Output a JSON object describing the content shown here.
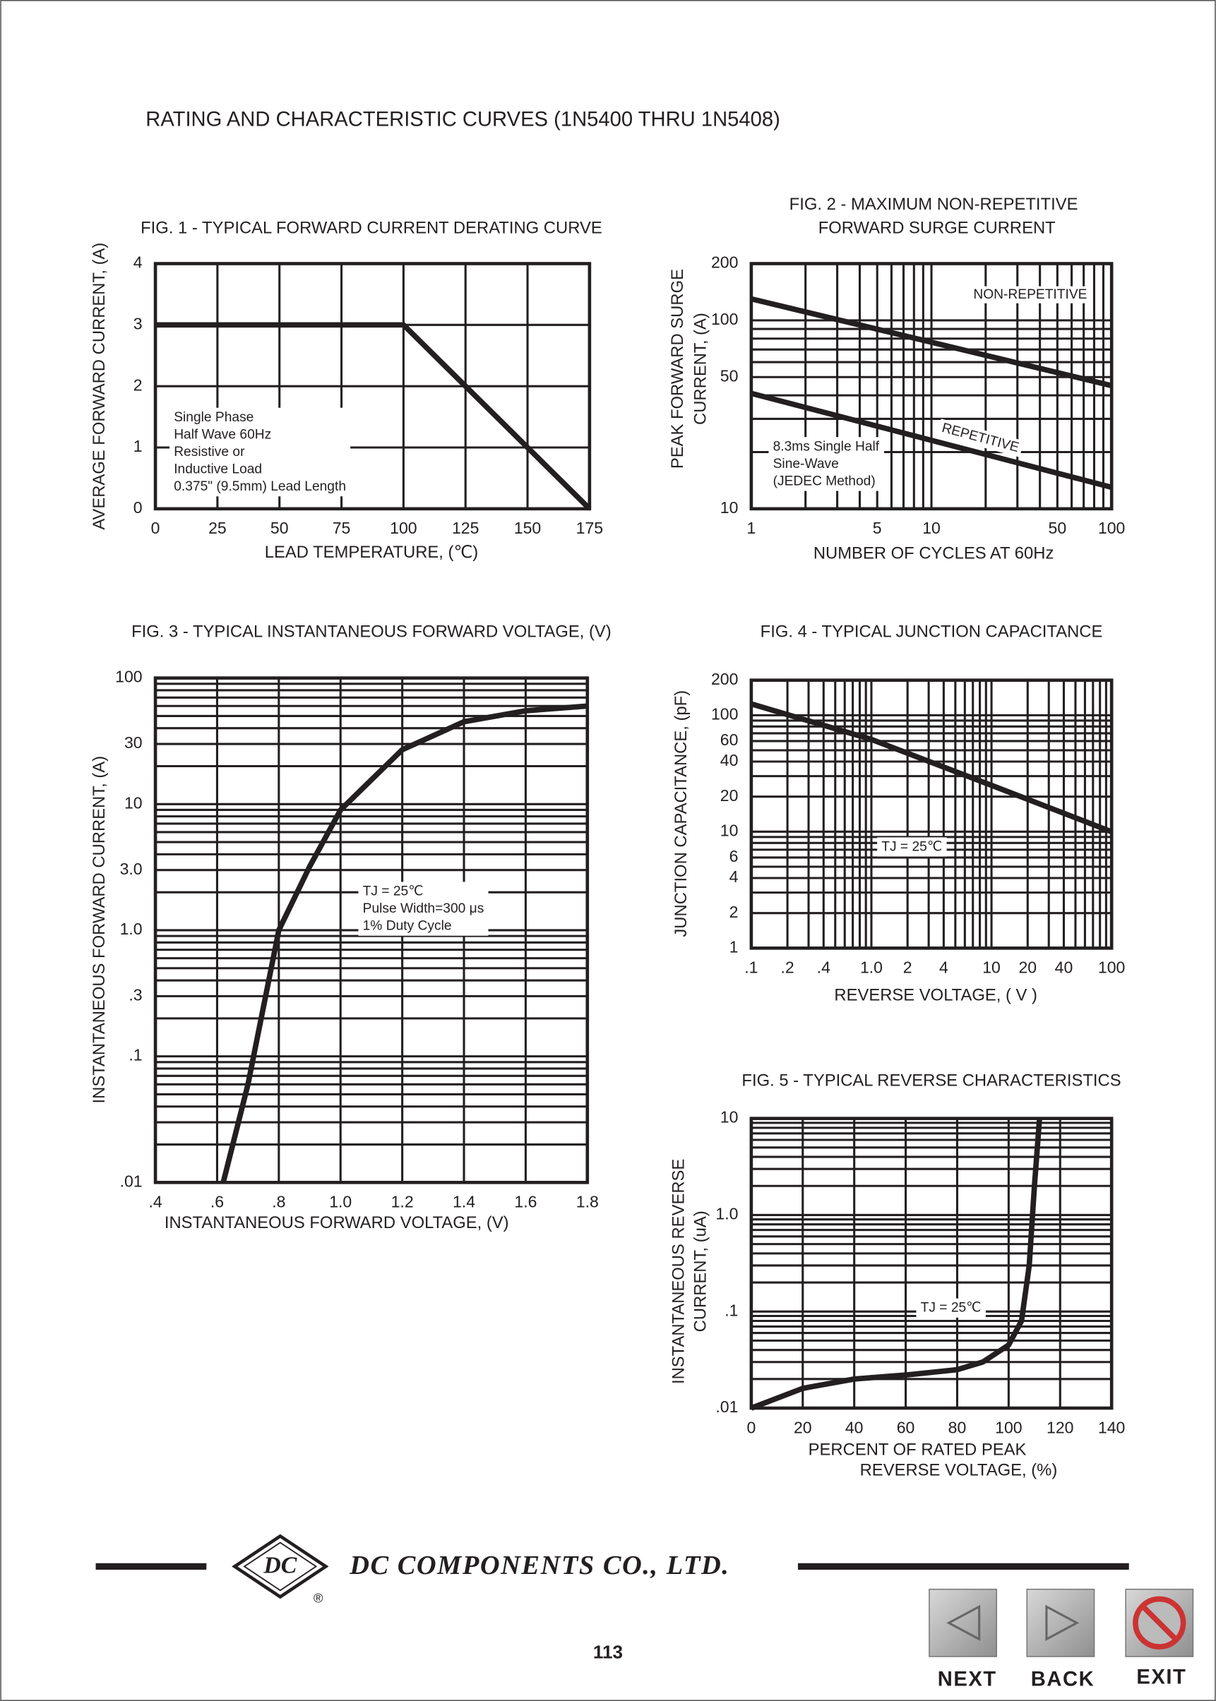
{
  "header": {
    "title": "RATING AND CHARACTERISTIC CURVES (1N5400 THRU 1N5408)"
  },
  "chart_data": [
    {
      "type": "line",
      "title": [
        "FIG. 1 - TYPICAL FORWARD CURRENT DERATING CURVE"
      ],
      "x_label": [
        "LEAD TEMPERATURE, (℃)"
      ],
      "y_label": [
        "AVERAGE FORWARD CURRENT, (A)"
      ],
      "xscale": "linear",
      "yscale": "linear",
      "grid": true,
      "color": "#231f20",
      "xlim": [
        0,
        175
      ],
      "xticks": [
        0,
        25,
        50,
        75,
        100,
        125,
        150,
        175
      ],
      "ylim": [
        0,
        4
      ],
      "yticks": [
        0,
        1,
        2,
        3,
        4
      ],
      "x": [
        0,
        100,
        175
      ],
      "values": [
        3,
        3,
        0
      ],
      "annotations": [
        "Single Phase",
        "Half Wave 60Hz",
        "Resistive or",
        "Inductive Load",
        "0.375\" (9.5mm) Lead Length"
      ]
    },
    {
      "type": "line",
      "title": [
        "FIG. 2 - MAXIMUM NON-REPETITIVE",
        "FORWARD SURGE CURRENT"
      ],
      "x_label": [
        "NUMBER OF CYCLES AT 60Hz"
      ],
      "y_label": [
        "PEAK FORWARD SURGE",
        "CURRENT, (A)"
      ],
      "xscale": "log",
      "yscale": "log",
      "grid": true,
      "color": "#231f20",
      "xlim": [
        1,
        100
      ],
      "xticks": [
        1,
        5,
        10,
        50,
        100
      ],
      "ylim": [
        10,
        200
      ],
      "yticks": [
        10,
        50,
        100,
        200
      ],
      "x": [
        1,
        100
      ],
      "series": [
        {
          "name": "NON-REPETITIVE",
          "values": [
            130,
            45
          ]
        },
        {
          "name": "REPETITIVE",
          "values": [
            41,
            13
          ]
        }
      ],
      "annotations": [
        "8.3ms Single Half",
        "Sine-Wave",
        "(JEDEC Method)"
      ]
    },
    {
      "type": "line",
      "title": [
        "FIG. 3 - TYPICAL INSTANTANEOUS FORWARD VOLTAGE, (V)"
      ],
      "x_label": [
        "INSTANTANEOUS FORWARD VOLTAGE, (V)"
      ],
      "y_label": [
        "INSTANTANEOUS FORWARD CURRENT, (A)"
      ],
      "xscale": "linear",
      "yscale": "log",
      "grid": true,
      "color": "#231f20",
      "xlim": [
        0.4,
        1.8
      ],
      "xticks": [
        {
          "value": 0.4,
          "label": ".4"
        },
        {
          "value": 0.6,
          "label": ".6"
        },
        {
          "value": 0.8,
          "label": ".8"
        },
        {
          "value": 1,
          "label": "1.0"
        },
        1.2,
        1.4,
        1.6,
        1.8
      ],
      "ylim": [
        0.01,
        100
      ],
      "yticks": [
        100,
        30,
        10,
        {
          "value": 3,
          "label": "3.0"
        },
        {
          "value": 1,
          "label": "1.0"
        },
        {
          "value": 0.1,
          "label": ".1"
        },
        {
          "value": 0.3,
          "label": ".3"
        },
        {
          "value": 0.01,
          "label": ".01"
        }
      ],
      "x": [
        0.62,
        0.7,
        0.8,
        0.9,
        1.0,
        1.2,
        1.4,
        1.6,
        1.8
      ],
      "values": [
        0.01,
        0.06,
        1,
        3.2,
        9,
        27,
        45,
        55,
        60
      ],
      "annotations": [
        "TJ = 25℃",
        "Pulse Width=300 μs",
        "1% Duty Cycle"
      ]
    },
    {
      "type": "line",
      "title": [
        "FIG. 4 - TYPICAL JUNCTION CAPACITANCE"
      ],
      "x_label": [
        "REVERSE VOLTAGE, ( V )"
      ],
      "y_label": [
        "JUNCTION CAPACITANCE, (pF)"
      ],
      "xscale": "log",
      "yscale": "log",
      "grid": true,
      "color": "#231f20",
      "xlim": [
        0.1,
        100
      ],
      "xticks": [
        {
          "value": 0.1,
          "label": ".1"
        },
        {
          "value": 0.2,
          "label": ".2"
        },
        {
          "value": 0.4,
          "label": ".4"
        },
        {
          "value": 1,
          "label": "1.0"
        },
        2,
        4,
        10,
        20,
        40,
        100
      ],
      "ylim": [
        1,
        200
      ],
      "yticks": [
        1,
        2,
        4,
        6,
        10,
        20,
        40,
        60,
        100,
        200
      ],
      "x": [
        0.1,
        1,
        10,
        100
      ],
      "values": [
        125,
        62,
        25,
        10
      ],
      "annotations": [
        "TJ = 25℃"
      ]
    },
    {
      "type": "line",
      "title": [
        "FIG. 5 - TYPICAL REVERSE CHARACTERISTICS"
      ],
      "x_label": [
        "PERCENT OF RATED PEAK",
        "REVERSE VOLTAGE, (%)"
      ],
      "y_label": [
        "INSTANTANEOUS REVERSE",
        "CURRENT, (uA)"
      ],
      "xscale": "linear",
      "yscale": "log",
      "grid": true,
      "color": "#231f20",
      "xlim": [
        0,
        140
      ],
      "xticks": [
        0,
        20,
        40,
        60,
        80,
        100,
        120,
        140
      ],
      "ylim": [
        0.01,
        10
      ],
      "yticks": [
        {
          "value": 10,
          "label": "10"
        },
        {
          "value": 1,
          "label": "1.0"
        },
        {
          "value": 0.1,
          "label": ".1"
        },
        {
          "value": 0.01,
          "label": ".01"
        }
      ],
      "x": [
        0,
        20,
        40,
        60,
        80,
        90,
        100,
        105,
        108,
        110,
        112
      ],
      "values": [
        0.01,
        0.016,
        0.02,
        0.022,
        0.025,
        0.03,
        0.045,
        0.08,
        0.3,
        2,
        10
      ],
      "annotations": [
        "TJ = 25℃"
      ]
    }
  ],
  "footer": {
    "logo": "DC",
    "registered": "®",
    "company": "DC COMPONENTS CO., LTD.",
    "page": "113",
    "buttons": [
      "NEXT",
      "BACK",
      "EXIT"
    ]
  }
}
